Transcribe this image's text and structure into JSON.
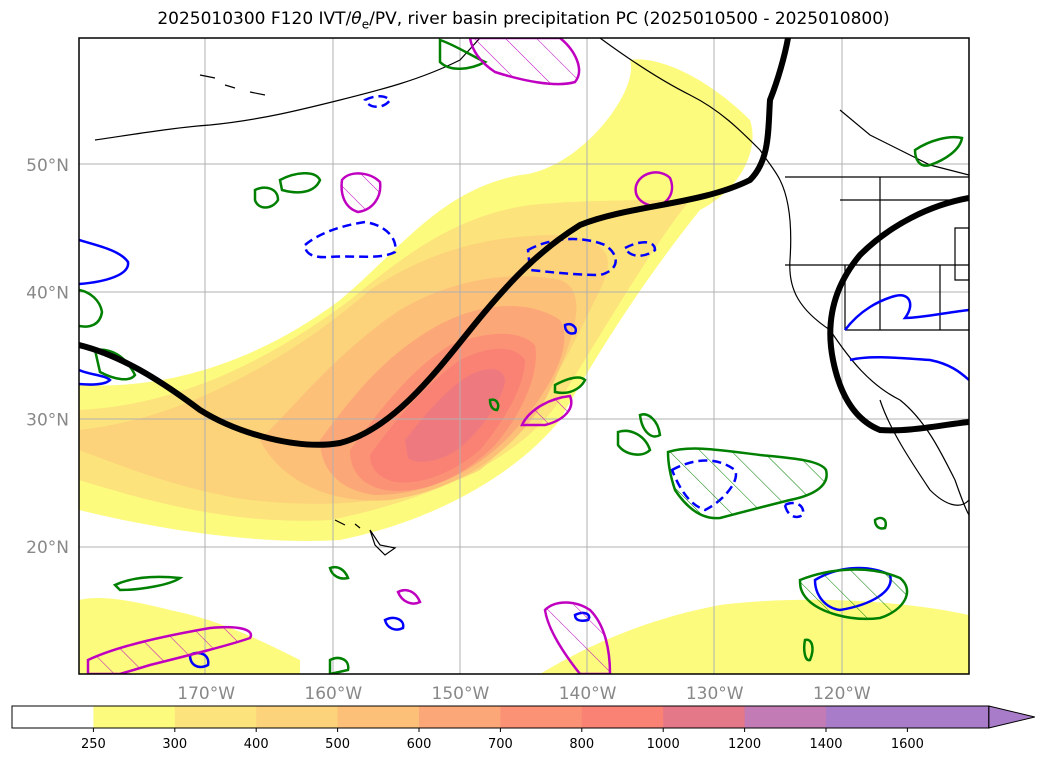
{
  "chart_data": {
    "type": "contour map",
    "title_prefix": "2025010300 F120 IVT/",
    "title_theta": "θ",
    "title_theta_sub": "e",
    "title_suffix": "/PV, river basin precipitation PC (2025010500 - 2025010800)",
    "x_ticks": [
      "170°W",
      "160°W",
      "150°W",
      "140°W",
      "130°W",
      "120°W"
    ],
    "y_ticks": [
      "50°N",
      "40°N",
      "30°N",
      "20°N"
    ],
    "lon_range": [
      -180,
      -110
    ],
    "lat_range": [
      10,
      60
    ],
    "colorbar": {
      "levels": [
        250,
        300,
        400,
        500,
        600,
        700,
        800,
        1000,
        1200,
        1400,
        1600
      ],
      "colors": [
        "#ffffff",
        "#fdfb7e",
        "#fce37b",
        "#fcd27a",
        "#fcc078",
        "#fca777",
        "#fb9275",
        "#f98274",
        "#e57888",
        "#c27bb4",
        "#a87cc8",
        "#a87cc8"
      ],
      "extend": "max"
    },
    "jet_line_color": "#000000",
    "pv_contour_color": "#0000ff",
    "precip_contour_color": "#008000",
    "theta_contour_color": "#c000c0"
  }
}
